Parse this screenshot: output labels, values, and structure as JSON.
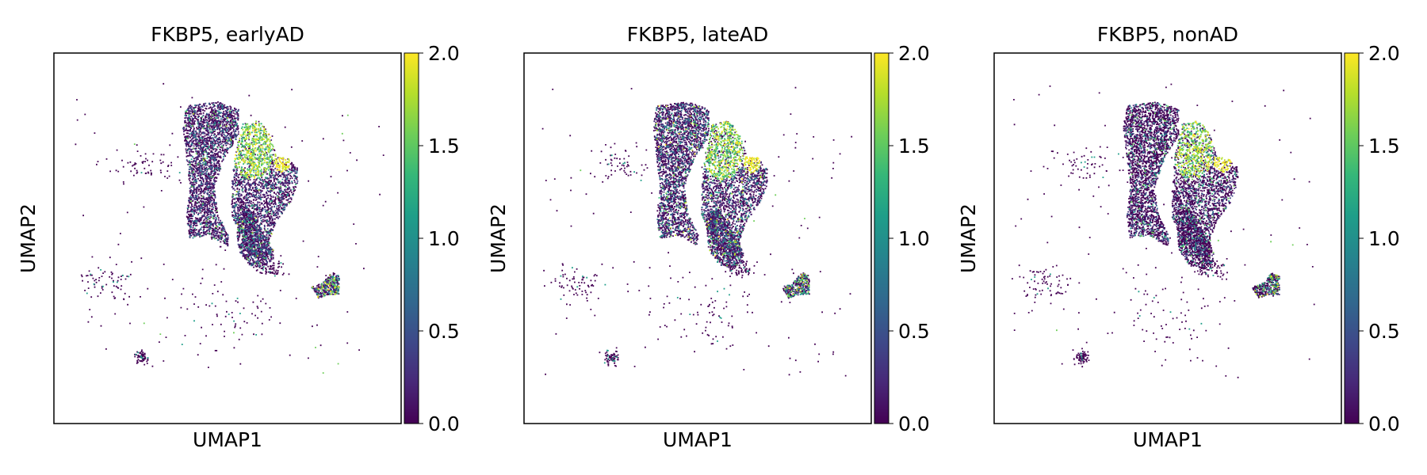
{
  "colors": {
    "viridis": [
      "#440154",
      "#482878",
      "#3e4989",
      "#31688e",
      "#26828e",
      "#1f9e89",
      "#35b779",
      "#6ece58",
      "#b5de2b",
      "#fde725"
    ],
    "background": "#ffffff",
    "frame": "#000000"
  },
  "chart_data": [
    {
      "type": "scatter",
      "title": "FKBP5, earlyAD",
      "xlabel": "UMAP1",
      "ylabel": "UMAP2",
      "colorbar": {
        "range": [
          0.0,
          2.0
        ],
        "ticks": [
          "0.0",
          "0.5",
          "1.0",
          "1.5",
          "2.0"
        ],
        "colormap": "viridis"
      },
      "hotspot_level": 1.0,
      "sparse_level": 0.3,
      "seed": 11
    },
    {
      "type": "scatter",
      "title": "FKBP5, lateAD",
      "xlabel": "UMAP1",
      "ylabel": "UMAP2",
      "colorbar": {
        "range": [
          0.0,
          2.0
        ],
        "ticks": [
          "0.0",
          "0.5",
          "1.0",
          "1.5",
          "2.0"
        ],
        "colormap": "viridis"
      },
      "hotspot_level": 1.0,
      "sparse_level": 0.45,
      "seed": 23
    },
    {
      "type": "scatter",
      "title": "FKBP5, nonAD",
      "xlabel": "UMAP1",
      "ylabel": "UMAP2",
      "colorbar": {
        "range": [
          0.0,
          2.0
        ],
        "ticks": [
          "0.0",
          "0.5",
          "1.0",
          "1.5",
          "2.0"
        ],
        "colormap": "viridis"
      },
      "hotspot_level": 0.8,
      "sparse_level": 0.15,
      "seed": 37
    }
  ]
}
